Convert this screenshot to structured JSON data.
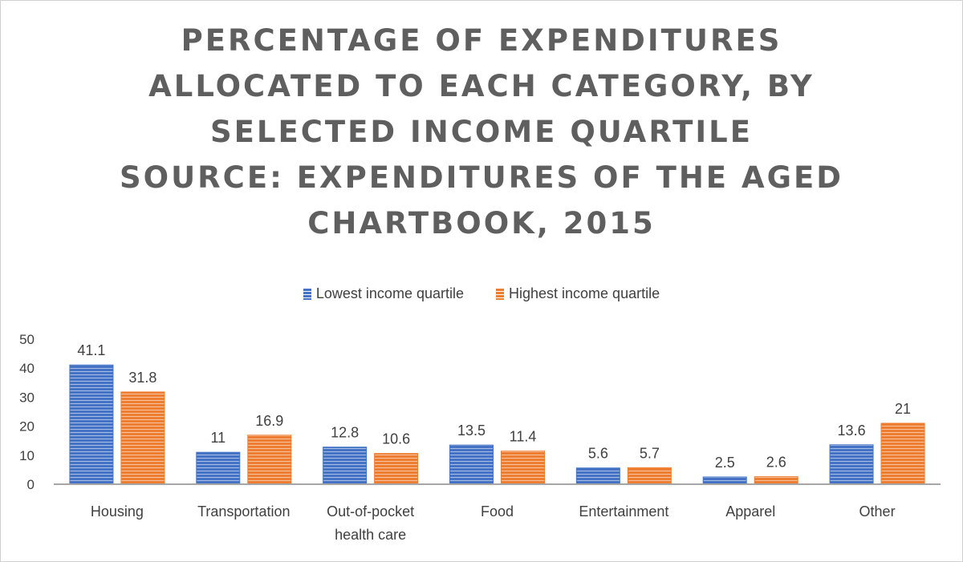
{
  "chart_data": {
    "type": "bar",
    "title_lines": [
      "PERCENTAGE OF EXPENDITURES",
      "ALLOCATED TO EACH CATEGORY, BY",
      "SELECTED INCOME QUARTILE",
      "SOURCE: EXPENDITURES OF THE AGED",
      "CHARTBOOK, 2015"
    ],
    "categories": [
      [
        "Housing"
      ],
      [
        "Transportation"
      ],
      [
        "Out-of-pocket",
        "health care"
      ],
      [
        "Food"
      ],
      [
        "Entertainment"
      ],
      [
        "Apparel"
      ],
      [
        "Other"
      ]
    ],
    "series": [
      {
        "name": "Lowest income quartile",
        "color": "#4472c4",
        "values": [
          41.1,
          11,
          12.8,
          13.5,
          5.6,
          2.5,
          13.6
        ],
        "labels": [
          "41.1",
          "11",
          "12.8",
          "13.5",
          "5.6",
          "2.5",
          "13.6"
        ]
      },
      {
        "name": "Highest income quartile",
        "color": "#ed7d31",
        "values": [
          31.8,
          16.9,
          10.6,
          11.4,
          5.7,
          2.6,
          21
        ],
        "labels": [
          "31.8",
          "16.9",
          "10.6",
          "11.4",
          "5.7",
          "2.6",
          "21"
        ]
      }
    ],
    "yticks": [
      "0",
      "10",
      "20",
      "30",
      "40",
      "50"
    ],
    "ylim": [
      0,
      50
    ],
    "xlabel": "",
    "ylabel": "",
    "grid": false,
    "legend_position": "top"
  }
}
